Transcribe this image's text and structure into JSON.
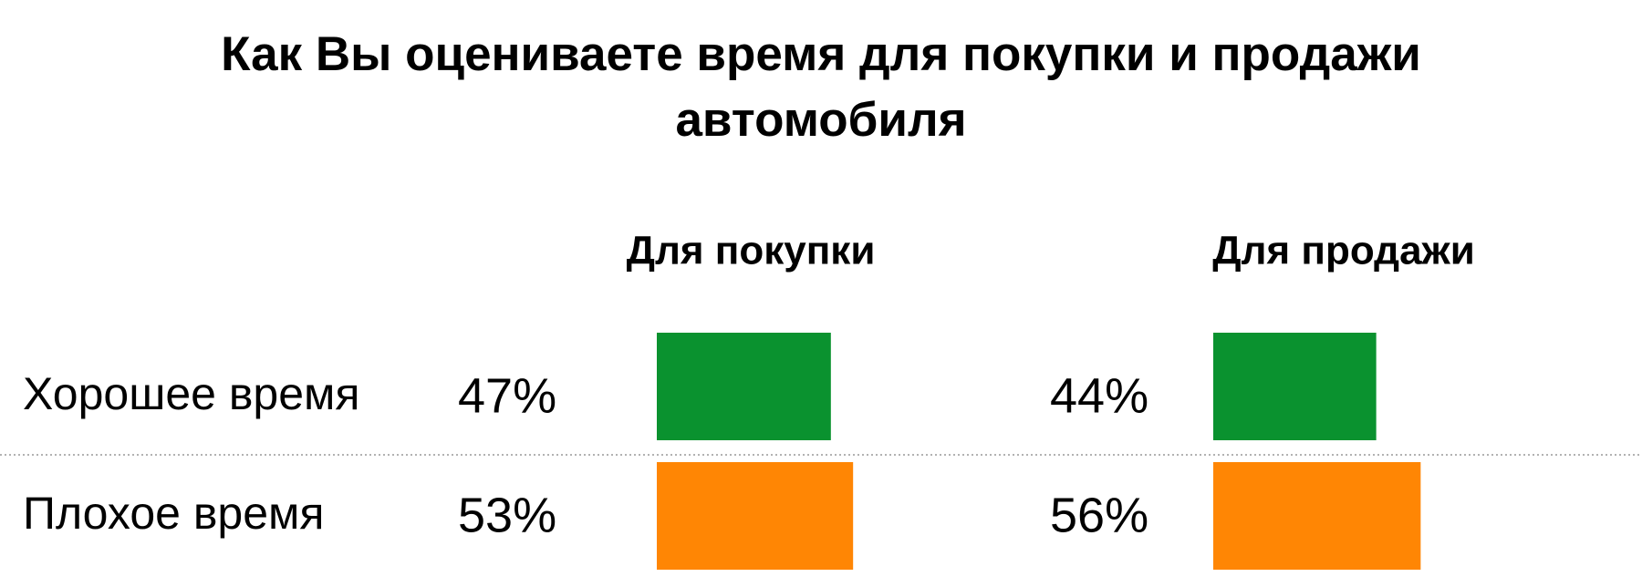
{
  "chart_data": {
    "type": "bar",
    "title": "Как Вы оцениваете время для покупки и продажи автомобиля",
    "categories": [
      "Хорошее время",
      "Плохое время"
    ],
    "colors": [
      "#0a922f",
      "#ff8604"
    ],
    "series": [
      {
        "name": "Для покупки",
        "values": [
          47,
          53
        ],
        "value_labels": [
          "47%",
          "53%"
        ]
      },
      {
        "name": "Для продажи",
        "values": [
          44,
          56
        ],
        "value_labels": [
          "44%",
          "56%"
        ]
      }
    ]
  }
}
